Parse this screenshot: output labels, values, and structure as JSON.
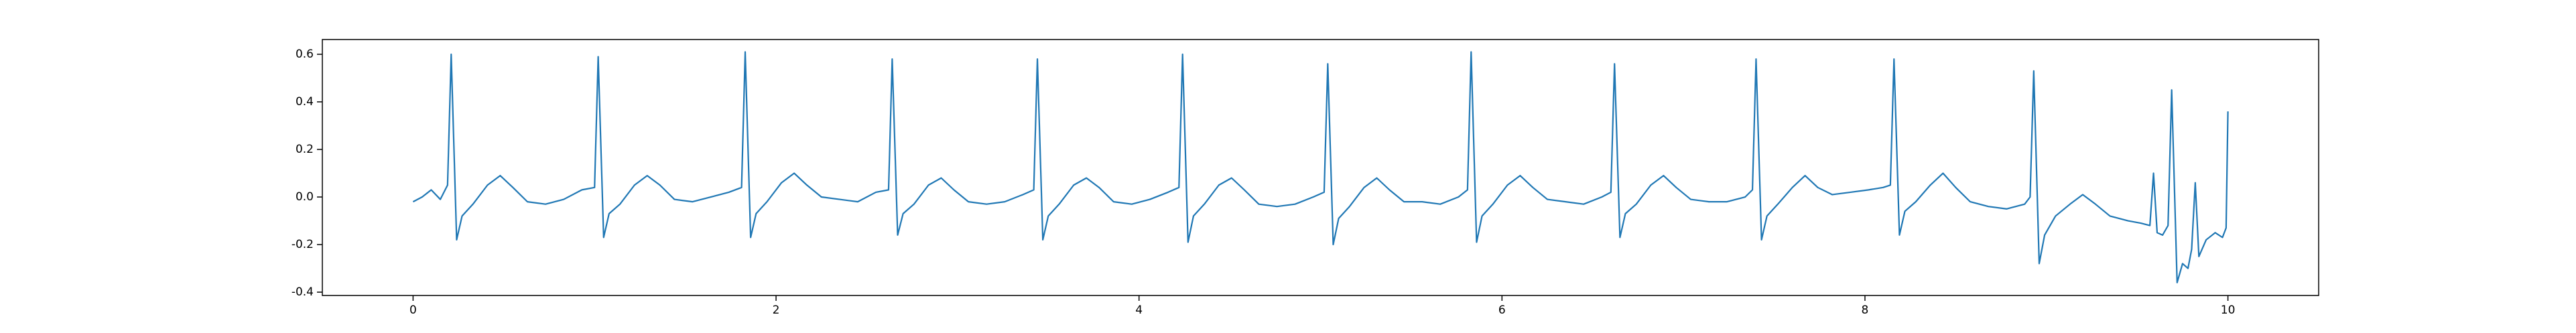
{
  "chart_data": {
    "type": "line",
    "x": [
      0.0,
      0.05,
      0.1,
      0.15,
      0.19,
      0.21,
      0.24,
      0.27,
      0.33,
      0.41,
      0.48,
      0.55,
      0.63,
      0.73,
      0.83,
      0.93,
      1.0,
      1.02,
      1.05,
      1.08,
      1.14,
      1.22,
      1.29,
      1.36,
      1.44,
      1.54,
      1.64,
      1.74,
      1.81,
      1.83,
      1.86,
      1.89,
      1.95,
      2.03,
      2.1,
      2.17,
      2.25,
      2.35,
      2.45,
      2.55,
      2.62,
      2.64,
      2.67,
      2.7,
      2.76,
      2.84,
      2.91,
      2.98,
      3.06,
      3.16,
      3.26,
      3.36,
      3.42,
      3.44,
      3.47,
      3.5,
      3.56,
      3.64,
      3.71,
      3.78,
      3.86,
      3.96,
      4.06,
      4.16,
      4.22,
      4.24,
      4.27,
      4.3,
      4.36,
      4.44,
      4.51,
      4.58,
      4.66,
      4.76,
      4.86,
      4.96,
      5.02,
      5.04,
      5.07,
      5.1,
      5.16,
      5.24,
      5.31,
      5.38,
      5.46,
      5.56,
      5.66,
      5.76,
      5.81,
      5.83,
      5.86,
      5.89,
      5.95,
      6.03,
      6.1,
      6.17,
      6.25,
      6.35,
      6.45,
      6.55,
      6.6,
      6.62,
      6.65,
      6.68,
      6.74,
      6.82,
      6.89,
      6.96,
      7.04,
      7.14,
      7.24,
      7.34,
      7.38,
      7.4,
      7.43,
      7.46,
      7.52,
      7.6,
      7.67,
      7.74,
      7.82,
      7.92,
      8.02,
      8.1,
      8.14,
      8.16,
      8.19,
      8.22,
      8.28,
      8.36,
      8.43,
      8.5,
      8.58,
      8.68,
      8.78,
      8.88,
      8.91,
      8.93,
      8.96,
      8.99,
      9.05,
      9.13,
      9.2,
      9.27,
      9.35,
      9.45,
      9.52,
      9.57,
      9.59,
      9.61,
      9.64,
      9.67,
      9.69,
      9.72,
      9.75,
      9.78,
      9.8,
      9.82,
      9.84,
      9.88,
      9.93,
      9.97,
      9.99,
      10.0
    ],
    "series": [
      {
        "color": "#1f77b4",
        "values": [
          -0.02,
          0.0,
          0.03,
          -0.01,
          0.05,
          0.6,
          -0.18,
          -0.08,
          -0.03,
          0.05,
          0.09,
          0.04,
          -0.02,
          -0.03,
          -0.01,
          0.03,
          0.04,
          0.59,
          -0.17,
          -0.07,
          -0.03,
          0.05,
          0.09,
          0.05,
          -0.01,
          -0.02,
          0.0,
          0.02,
          0.04,
          0.61,
          -0.17,
          -0.07,
          -0.02,
          0.06,
          0.1,
          0.05,
          0.0,
          -0.01,
          -0.02,
          0.02,
          0.03,
          0.58,
          -0.16,
          -0.07,
          -0.03,
          0.05,
          0.08,
          0.03,
          -0.02,
          -0.03,
          -0.02,
          0.01,
          0.03,
          0.58,
          -0.18,
          -0.08,
          -0.03,
          0.05,
          0.08,
          0.04,
          -0.02,
          -0.03,
          -0.01,
          0.02,
          0.04,
          0.6,
          -0.19,
          -0.08,
          -0.03,
          0.05,
          0.08,
          0.03,
          -0.03,
          -0.04,
          -0.03,
          0.0,
          0.02,
          0.56,
          -0.2,
          -0.09,
          -0.04,
          0.04,
          0.08,
          0.03,
          -0.02,
          -0.02,
          -0.03,
          0.0,
          0.03,
          0.61,
          -0.19,
          -0.08,
          -0.03,
          0.05,
          0.09,
          0.04,
          -0.01,
          -0.02,
          -0.03,
          0.0,
          0.02,
          0.56,
          -0.17,
          -0.07,
          -0.03,
          0.05,
          0.09,
          0.04,
          -0.01,
          -0.02,
          -0.02,
          0.0,
          0.03,
          0.58,
          -0.18,
          -0.08,
          -0.03,
          0.04,
          0.09,
          0.04,
          0.01,
          0.02,
          0.03,
          0.04,
          0.05,
          0.58,
          -0.16,
          -0.06,
          -0.02,
          0.05,
          0.1,
          0.04,
          -0.02,
          -0.04,
          -0.05,
          -0.03,
          0.0,
          0.53,
          -0.28,
          -0.16,
          -0.08,
          -0.03,
          0.01,
          -0.03,
          -0.08,
          -0.1,
          -0.11,
          -0.12,
          0.1,
          -0.15,
          -0.16,
          -0.12,
          0.45,
          -0.36,
          -0.28,
          -0.3,
          -0.22,
          0.06,
          -0.25,
          -0.18,
          -0.15,
          -0.17,
          -0.13,
          0.36
        ]
      }
    ],
    "xlim": [
      -0.5,
      10.5
    ],
    "xticks": [
      0,
      2,
      4,
      6,
      8,
      10
    ],
    "ylim": [
      -0.414,
      0.662
    ],
    "yticks": [
      -0.4,
      -0.2,
      {
        "value": 0,
        "label": "0.0"
      },
      0.2,
      0.4,
      0.6
    ]
  }
}
